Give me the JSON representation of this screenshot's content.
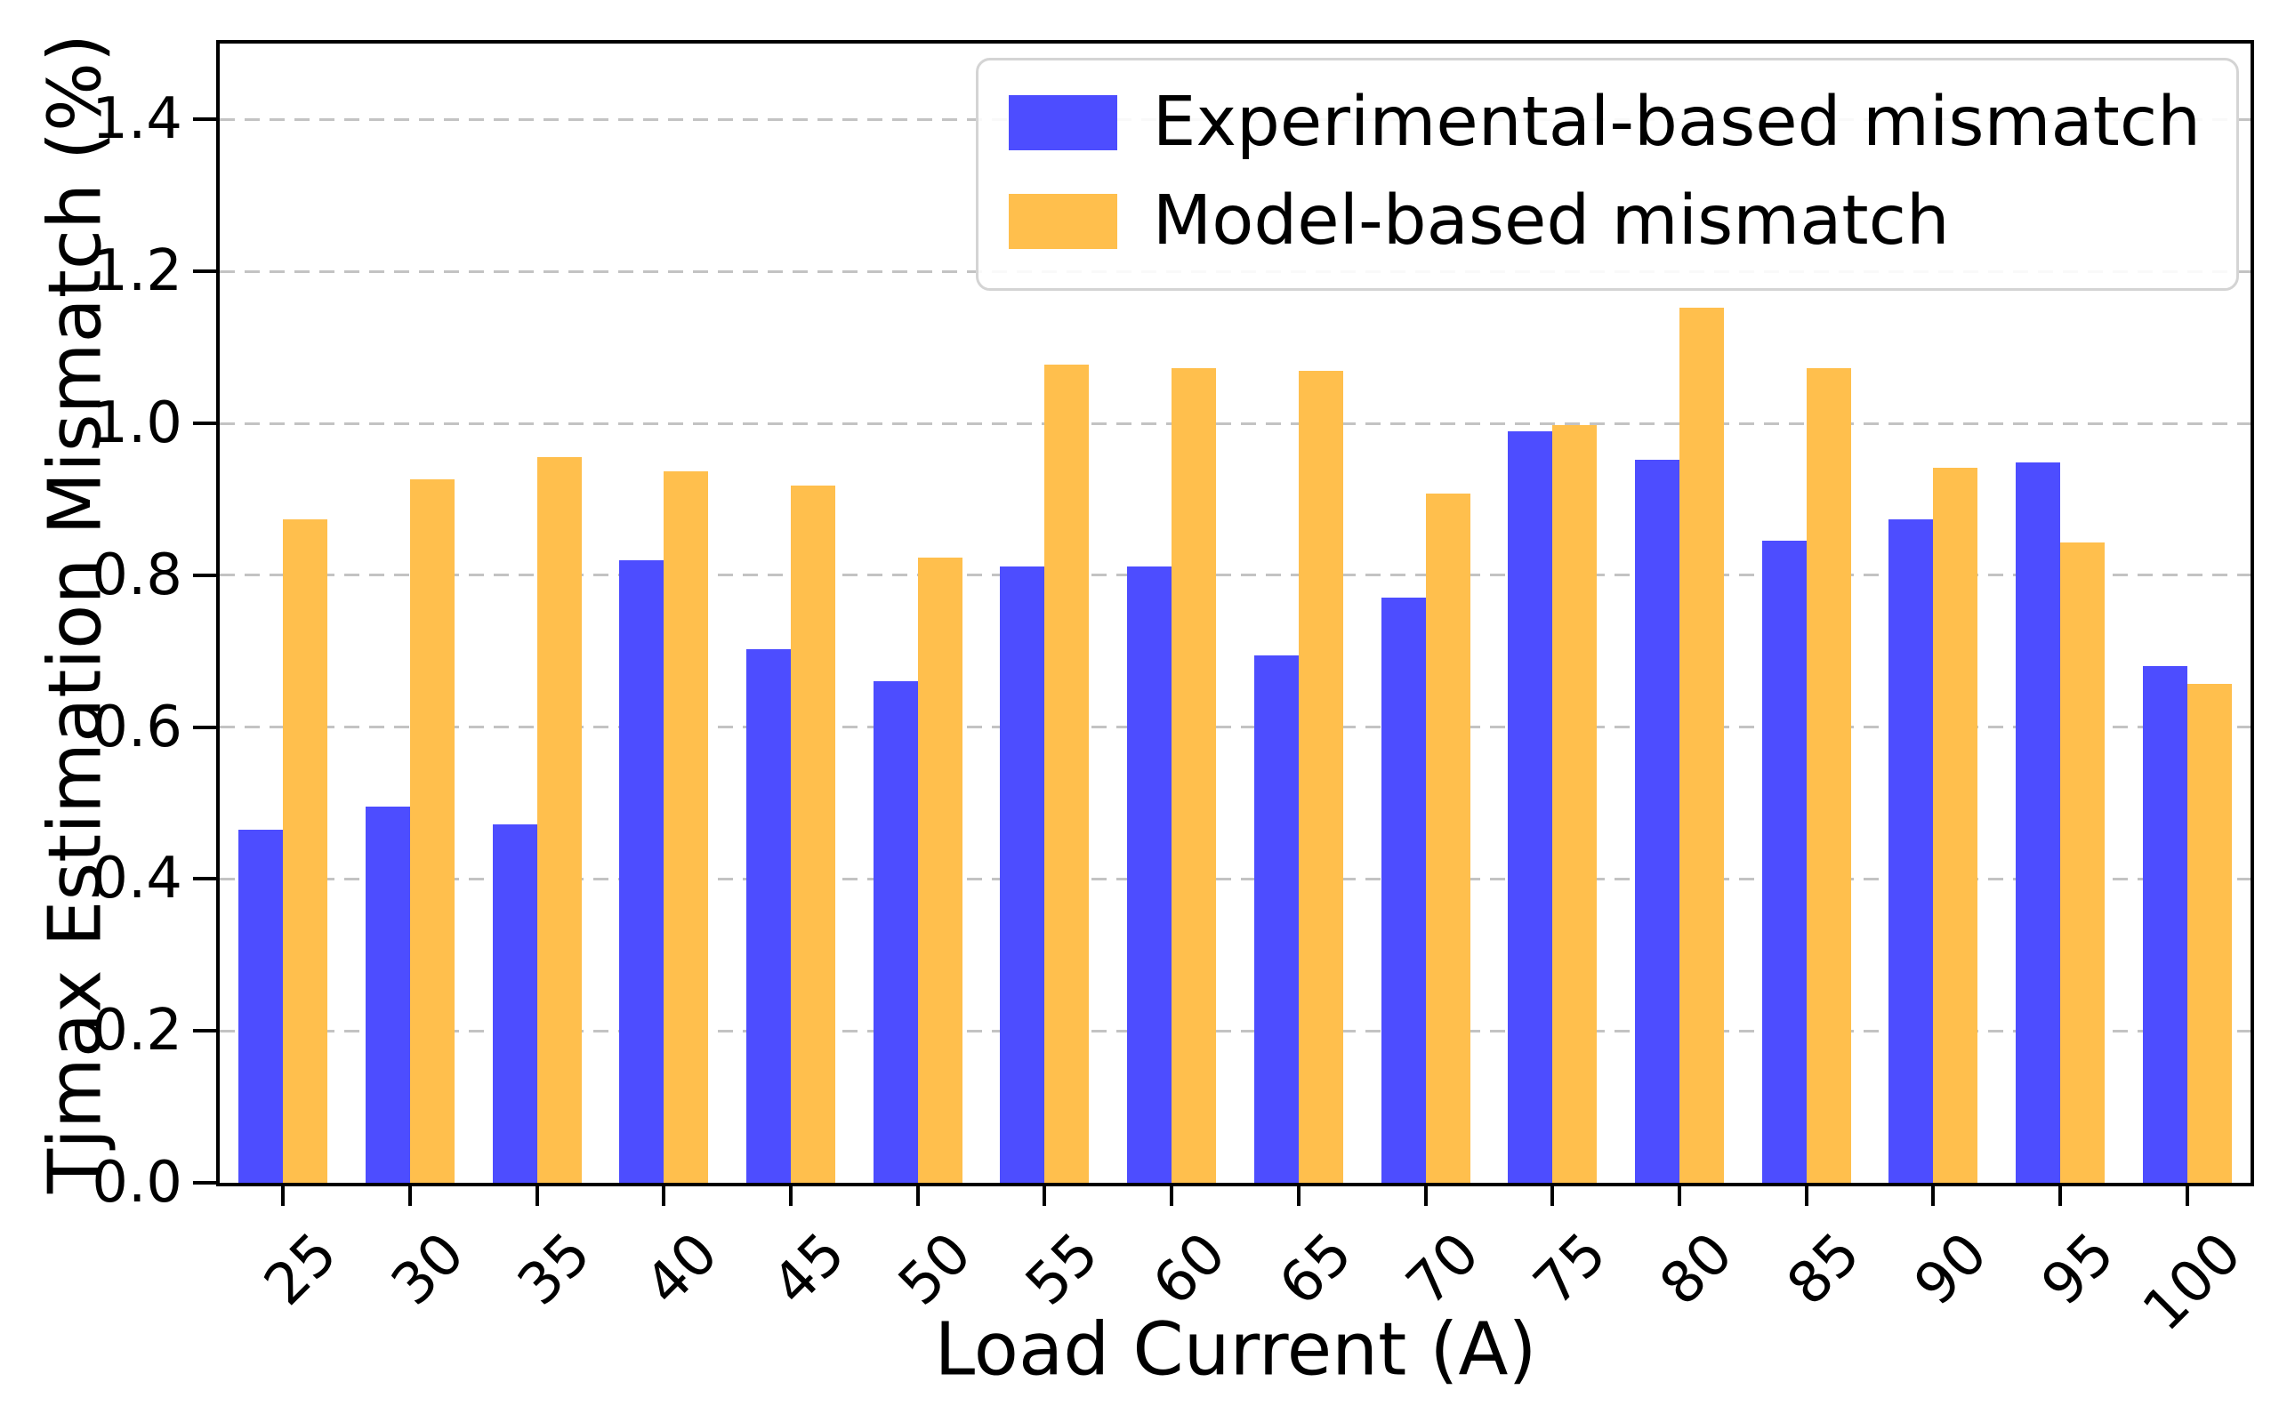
{
  "figure": {
    "xlabel": "Load Current (A)",
    "ylabel": "Tjmax Estimation Mismatch (%)"
  },
  "axes": {
    "ytick_labels": [
      "0.0",
      "0.2",
      "0.4",
      "0.6",
      "0.8",
      "1.0",
      "1.2",
      "1.4"
    ],
    "ytick_values": [
      0.0,
      0.2,
      0.4,
      0.6,
      0.8,
      1.0,
      1.2,
      1.4
    ],
    "gridline_values": [
      0.2,
      0.4,
      0.6,
      0.8,
      1.0,
      1.2,
      1.4
    ]
  },
  "legend": {
    "items": [
      {
        "label": "Experimental-based mismatch",
        "color": "#4D4DFF"
      },
      {
        "label": "Model-based mismatch",
        "color": "#FFBF4D"
      }
    ]
  },
  "chart_data": {
    "type": "bar",
    "title": "",
    "xlabel": "Load Current (A)",
    "ylabel": "Tjmax Estimation Mismatch (%)",
    "ylim": [
      0,
      1.5
    ],
    "grid": "horizontal dashed",
    "legend_position": "upper right",
    "categories": [
      "25",
      "30",
      "35",
      "40",
      "45",
      "50",
      "55",
      "60",
      "65",
      "70",
      "75",
      "80",
      "85",
      "90",
      "95",
      "100"
    ],
    "series": [
      {
        "name": "Experimental-based mismatch",
        "color": "#4D4DFF",
        "values": [
          0.465,
          0.495,
          0.472,
          0.82,
          0.703,
          0.661,
          0.812,
          0.812,
          0.694,
          0.77,
          0.99,
          0.952,
          0.846,
          0.873,
          0.948,
          0.68
        ]
      },
      {
        "name": "Model-based mismatch",
        "color": "#FFBF4D",
        "values": [
          0.873,
          0.926,
          0.956,
          0.937,
          0.918,
          0.823,
          1.077,
          1.073,
          1.069,
          0.907,
          0.998,
          1.152,
          1.073,
          0.941,
          0.843,
          0.657
        ]
      }
    ]
  }
}
